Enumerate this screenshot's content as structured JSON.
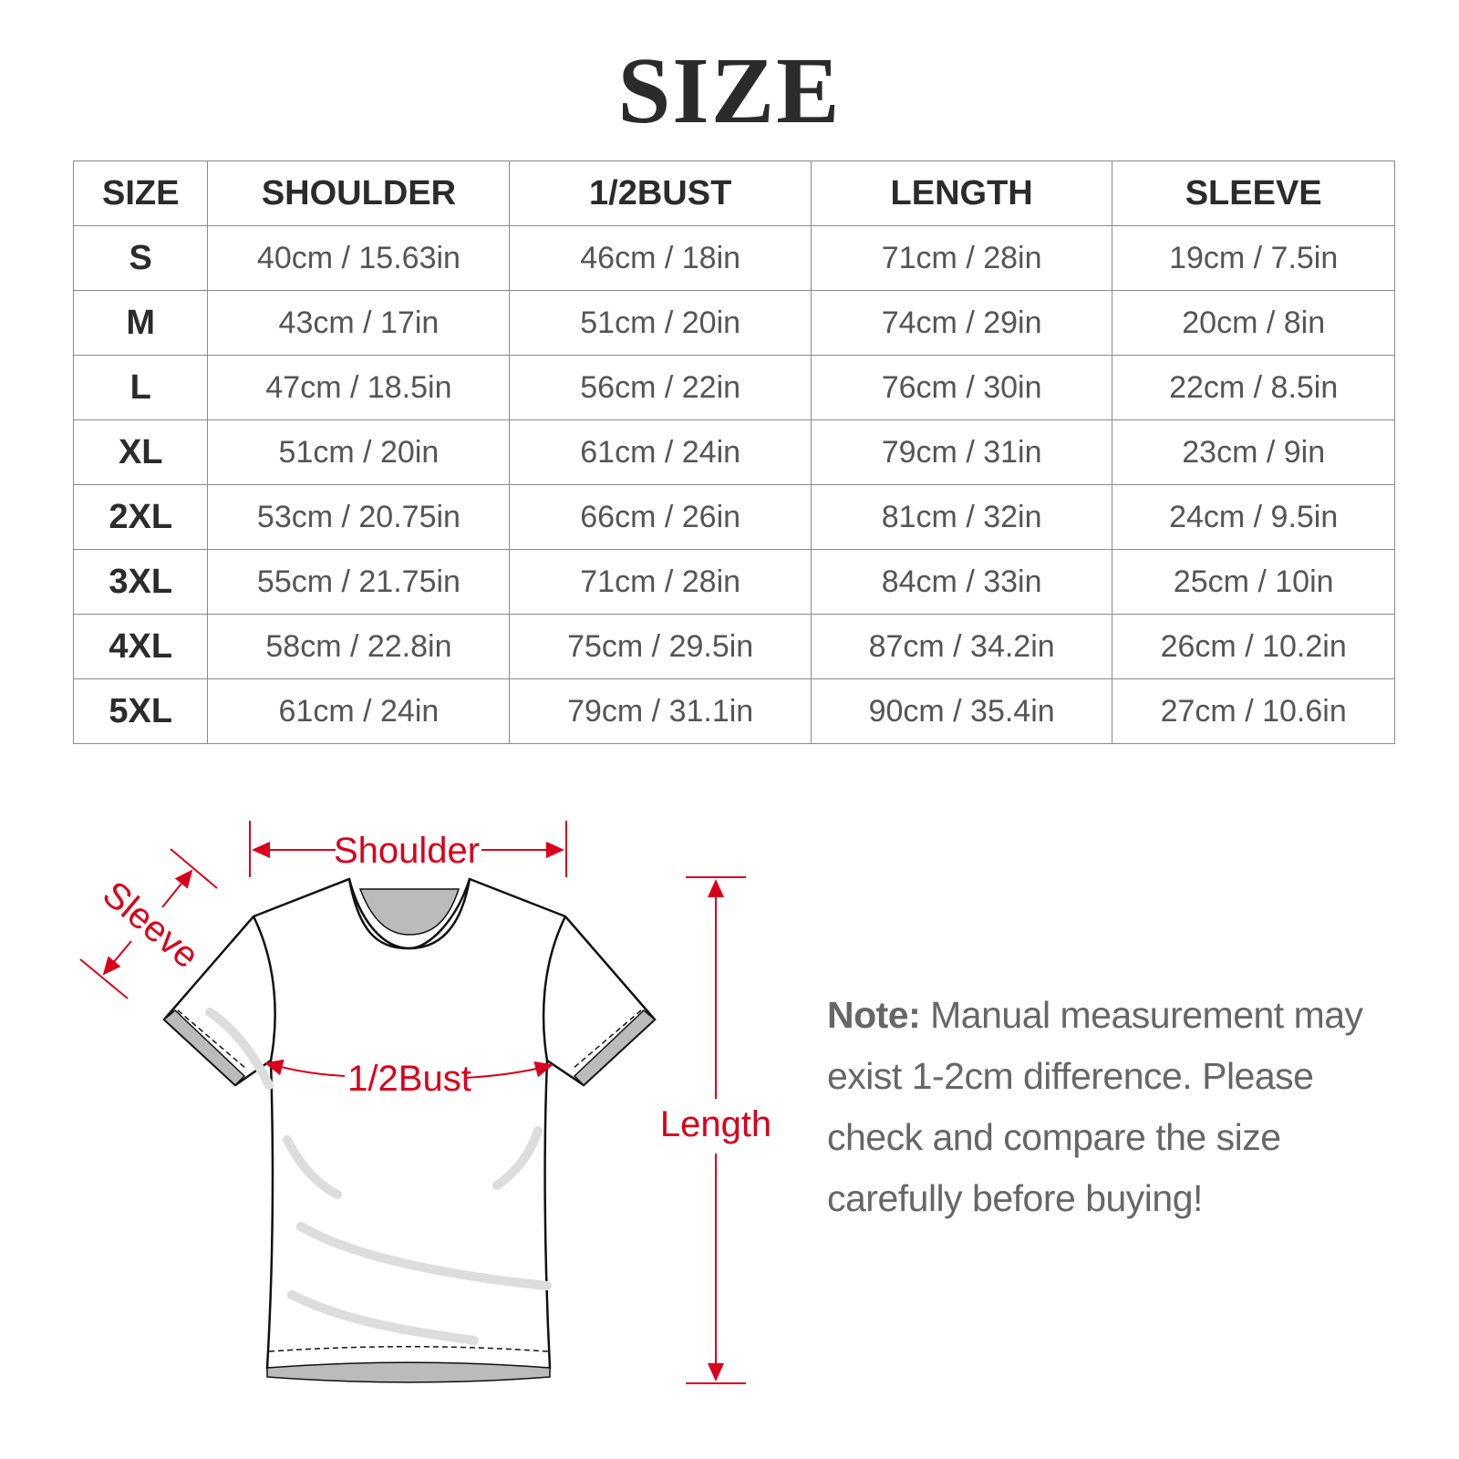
{
  "title": "SIZE",
  "table": {
    "headers": [
      "SIZE",
      "SHOULDER",
      "1/2BUST",
      "LENGTH",
      "SLEEVE"
    ],
    "rows": [
      [
        "S",
        "40cm / 15.63in",
        "46cm / 18in",
        "71cm / 28in",
        "19cm / 7.5in"
      ],
      [
        "M",
        "43cm / 17in",
        "51cm / 20in",
        "74cm / 29in",
        "20cm / 8in"
      ],
      [
        "L",
        "47cm / 18.5in",
        "56cm / 22in",
        "76cm / 30in",
        "22cm / 8.5in"
      ],
      [
        "XL",
        "51cm / 20in",
        "61cm / 24in",
        "79cm / 31in",
        "23cm / 9in"
      ],
      [
        "2XL",
        "53cm / 20.75in",
        "66cm / 26in",
        "81cm / 32in",
        "24cm / 9.5in"
      ],
      [
        "3XL",
        "55cm / 21.75in",
        "71cm / 28in",
        "84cm / 33in",
        "25cm / 10in"
      ],
      [
        "4XL",
        "58cm / 22.8in",
        "75cm / 29.5in",
        "87cm / 34.2in",
        "26cm / 10.2in"
      ],
      [
        "5XL",
        "61cm / 24in",
        "79cm / 31.1in",
        "90cm / 35.4in",
        "27cm / 10.6in"
      ]
    ]
  },
  "diagram": {
    "labels": {
      "shoulder": "Shoulder",
      "sleeve": "Sleeve",
      "bust": "1/2Bust",
      "length": "Length"
    },
    "accent_color": "#d9001b"
  },
  "note": {
    "label": "Note:",
    "text": " Manual measurement may exist 1-2cm difference. Please check and compare the size carefully before buying!"
  }
}
